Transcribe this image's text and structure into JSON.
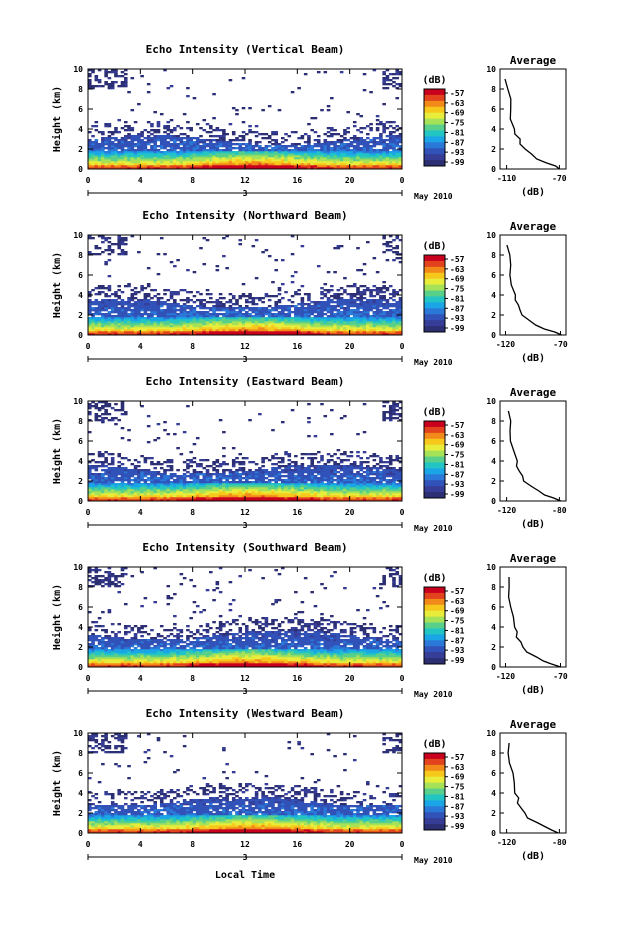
{
  "figure": {
    "xlabel": "Local Time",
    "date_label": "May 2010",
    "day_label": "3"
  },
  "colorbar": {
    "unit": "(dB)",
    "ticks": [
      "-57",
      "-63",
      "-69",
      "-75",
      "-81",
      "-87",
      "-93",
      "-99"
    ],
    "colors": [
      "#c8001e",
      "#e2421c",
      "#f28a1a",
      "#f7c81c",
      "#e8ec3a",
      "#a6e258",
      "#58d08a",
      "#22c4c4",
      "#1aa6e6",
      "#2a78d8",
      "#3152b8",
      "#363d96",
      "#2c2f74"
    ]
  },
  "chart_data": [
    {
      "type": "heatmap",
      "title": "Echo Intensity (Vertical Beam)",
      "ylabel": "Height (km)",
      "xlim": [
        0,
        24
      ],
      "ylim": [
        0,
        10
      ],
      "xticks": [
        "0",
        "4",
        "8",
        "12",
        "16",
        "20",
        "0"
      ],
      "yticks": [
        "0",
        "2",
        "4",
        "6",
        "8",
        "10"
      ],
      "profile": {
        "title": "Average",
        "xlabel": "(dB)",
        "xlim": [
          -115,
          -65
        ],
        "xticks": [
          "-110",
          "-70"
        ],
        "height": [
          0,
          0.3,
          0.6,
          1.0,
          1.5,
          2.0,
          2.5,
          3.0,
          3.5,
          4.0,
          5.0,
          6.0,
          7.0,
          8.0,
          9.0
        ],
        "db": [
          -70,
          -74,
          -80,
          -86,
          -92,
          -96,
          -99,
          -101,
          -103,
          -104,
          -106,
          -107,
          -108,
          -109,
          -110
        ]
      }
    },
    {
      "type": "heatmap",
      "title": "Echo Intensity (Northward Beam)",
      "ylabel": "Height (km)",
      "xlim": [
        0,
        24
      ],
      "ylim": [
        0,
        10
      ],
      "xticks": [
        "0",
        "4",
        "8",
        "12",
        "16",
        "20",
        "0"
      ],
      "yticks": [
        "0",
        "2",
        "4",
        "6",
        "8",
        "10"
      ],
      "profile": {
        "title": "Average",
        "xlabel": "(dB)",
        "xlim": [
          -125,
          -65
        ],
        "xticks": [
          "-120",
          "-70"
        ],
        "height": [
          0,
          0.3,
          0.6,
          1.0,
          1.5,
          2.0,
          2.5,
          3.0,
          3.5,
          4.0,
          5.0,
          6.0,
          7.0,
          8.0,
          9.0
        ],
        "db": [
          -70,
          -76,
          -84,
          -92,
          -100,
          -104,
          -107,
          -109,
          -110,
          -112,
          -114,
          -115,
          -116,
          -117,
          -118
        ]
      }
    },
    {
      "type": "heatmap",
      "title": "Echo Intensity (Eastward Beam)",
      "ylabel": "Height (km)",
      "xlim": [
        0,
        24
      ],
      "ylim": [
        0,
        10
      ],
      "xticks": [
        "0",
        "4",
        "8",
        "12",
        "16",
        "20",
        "0"
      ],
      "yticks": [
        "0",
        "2",
        "4",
        "6",
        "8",
        "10"
      ],
      "profile": {
        "title": "Average",
        "xlabel": "(dB)",
        "xlim": [
          -125,
          -75
        ],
        "xticks": [
          "-120",
          "-80"
        ],
        "height": [
          0,
          0.3,
          0.6,
          1.0,
          1.5,
          2.0,
          2.5,
          3.0,
          3.5,
          4.0,
          5.0,
          6.0,
          7.0,
          8.0,
          9.0
        ],
        "db": [
          -80,
          -84,
          -90,
          -96,
          -102,
          -106,
          -109,
          -110,
          -112,
          -113,
          -115,
          -116,
          -117,
          -118,
          -119
        ]
      }
    },
    {
      "type": "heatmap",
      "title": "Echo Intensity (Southward Beam)",
      "ylabel": "Height (km)",
      "xlim": [
        0,
        24
      ],
      "ylim": [
        0,
        10
      ],
      "xticks": [
        "0",
        "4",
        "8",
        "12",
        "16",
        "20",
        "0"
      ],
      "yticks": [
        "0",
        "2",
        "4",
        "6",
        "8",
        "10"
      ],
      "profile": {
        "title": "Average",
        "xlabel": "(dB)",
        "xlim": [
          -125,
          -65
        ],
        "xticks": [
          "-120",
          "-70"
        ],
        "height": [
          0,
          0.3,
          0.6,
          1.0,
          1.5,
          2.0,
          2.5,
          3.0,
          3.5,
          4.0,
          5.0,
          6.0,
          7.0,
          8.0,
          9.0
        ],
        "db": [
          -70,
          -77,
          -85,
          -93,
          -100,
          -104,
          -107,
          -109,
          -110,
          -112,
          -114,
          -115,
          -116,
          -117,
          -118
        ]
      }
    },
    {
      "type": "heatmap",
      "title": "Echo Intensity (Westward Beam)",
      "ylabel": "Height (km)",
      "xlim": [
        0,
        24
      ],
      "ylim": [
        0,
        10
      ],
      "xticks": [
        "0",
        "4",
        "8",
        "12",
        "16",
        "20",
        "0"
      ],
      "yticks": [
        "0",
        "2",
        "4",
        "6",
        "8",
        "10"
      ],
      "profile": {
        "title": "Average",
        "xlabel": "(dB)",
        "xlim": [
          -125,
          -75
        ],
        "xticks": [
          "-120",
          "-80"
        ],
        "height": [
          0,
          0.3,
          0.6,
          1.0,
          1.5,
          2.0,
          2.5,
          3.0,
          3.5,
          4.0,
          5.0,
          6.0,
          7.0,
          8.0,
          9.0
        ],
        "db": [
          -80,
          -85,
          -91,
          -97,
          -103,
          -107,
          -109,
          -111,
          -112,
          -113,
          -115,
          -116,
          -117,
          -118,
          -119
        ]
      }
    }
  ]
}
